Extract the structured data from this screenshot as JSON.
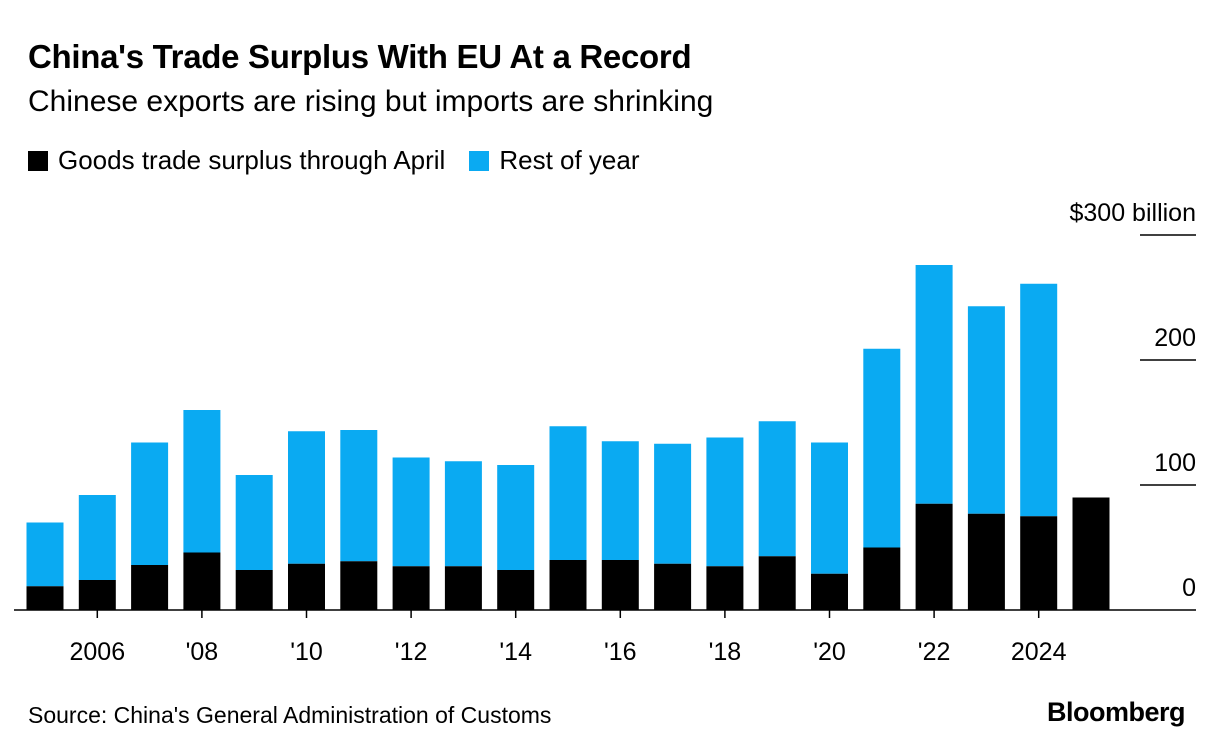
{
  "header": {
    "title": "China's Trade Surplus With EU At a Record",
    "subtitle": "Chinese exports are rising but imports are shrinking"
  },
  "legend": {
    "items": [
      {
        "label": "Goods trade surplus through April",
        "color": "#000000",
        "icon": "square-swatch"
      },
      {
        "label": "Rest of year",
        "color": "#0aaaf2",
        "icon": "square-swatch"
      }
    ]
  },
  "footer": {
    "source": "Source: China's General Administration of Customs",
    "brand": "Bloomberg"
  },
  "chart_data": {
    "type": "bar",
    "stacked": true,
    "x": [
      2005,
      2006,
      2007,
      2008,
      2009,
      2010,
      2011,
      2012,
      2013,
      2014,
      2015,
      2016,
      2017,
      2018,
      2019,
      2020,
      2021,
      2022,
      2023,
      2024,
      2025
    ],
    "series": [
      {
        "name": "Goods trade surplus through April",
        "color": "#000000",
        "values": [
          19,
          24,
          36,
          46,
          32,
          37,
          39,
          35,
          35,
          32,
          40,
          40,
          37,
          35,
          43,
          29,
          50,
          85,
          77,
          75,
          90
        ]
      },
      {
        "name": "Rest of year",
        "color": "#0aaaf2",
        "values": [
          51,
          68,
          98,
          114,
          76,
          106,
          105,
          87,
          84,
          84,
          107,
          95,
          96,
          103,
          108,
          105,
          159,
          191,
          166,
          186,
          null
        ]
      }
    ],
    "x_tick_labels": [
      {
        "x": 2006,
        "label": "2006"
      },
      {
        "x": 2008,
        "label": "'08"
      },
      {
        "x": 2010,
        "label": "'10"
      },
      {
        "x": 2012,
        "label": "'12"
      },
      {
        "x": 2014,
        "label": "'14"
      },
      {
        "x": 2016,
        "label": "'16"
      },
      {
        "x": 2018,
        "label": "'18"
      },
      {
        "x": 2020,
        "label": "'20"
      },
      {
        "x": 2022,
        "label": "'22"
      },
      {
        "x": 2024,
        "label": "2024"
      }
    ],
    "y_ticks": [
      {
        "value": 0,
        "label": "0"
      },
      {
        "value": 100,
        "label": "100"
      },
      {
        "value": 200,
        "label": "200"
      },
      {
        "value": 300,
        "label": "$300 billion"
      }
    ],
    "ylim": [
      0,
      300
    ],
    "y_axis_side": "right",
    "grid": false
  }
}
